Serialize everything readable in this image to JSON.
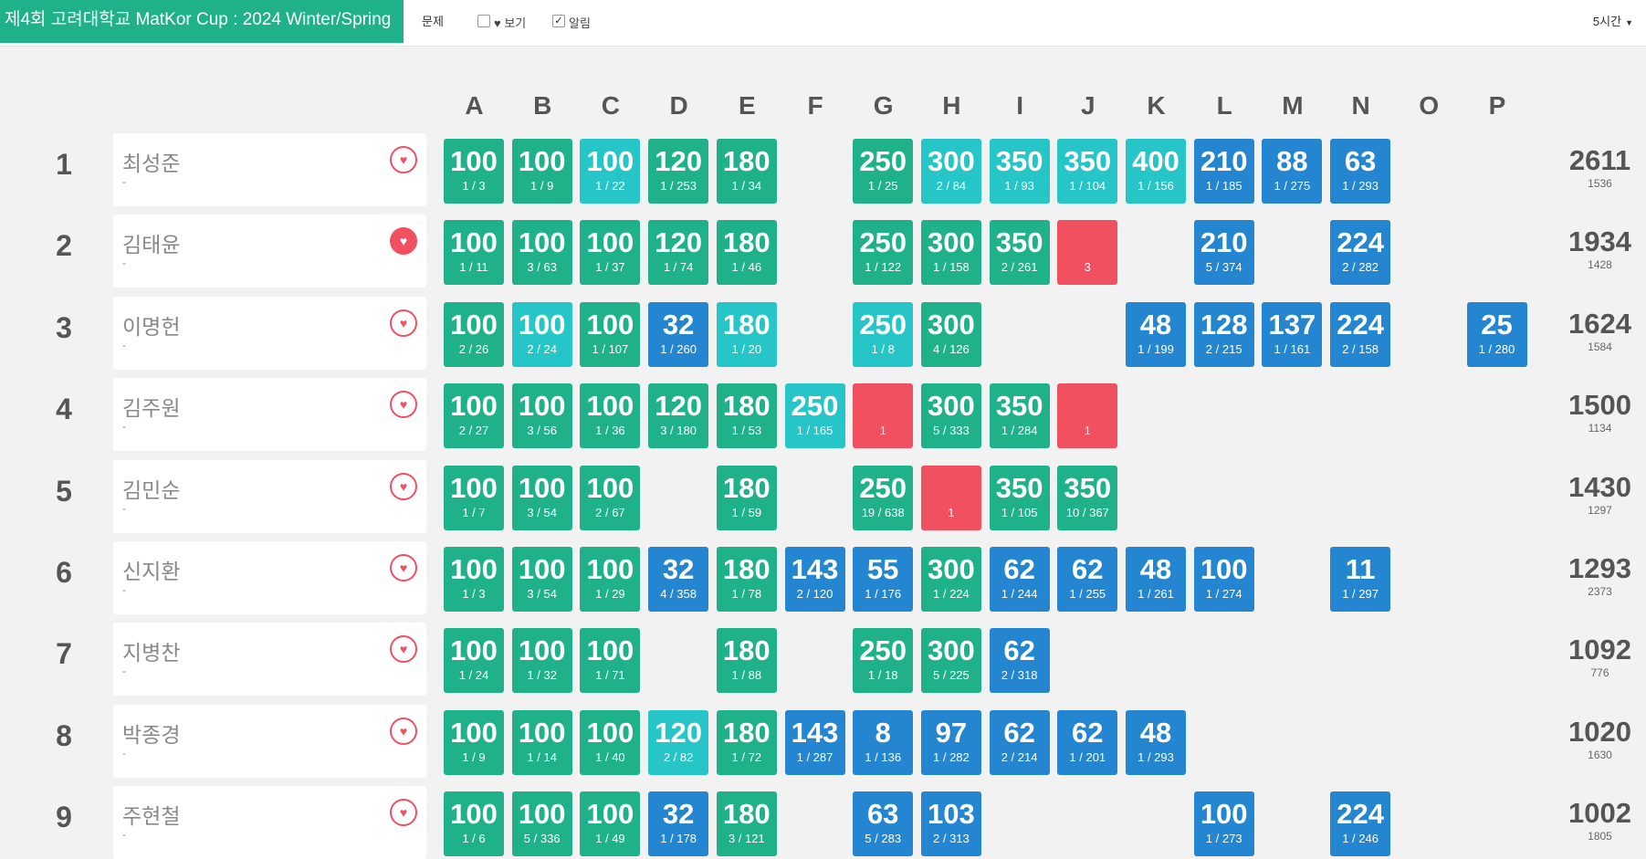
{
  "header": {
    "contest_title": "제4회 고려대학교 MatKor Cup : 2024 Winter/Spring",
    "menu_problem": "문제",
    "view_label": "보기",
    "view_checked": false,
    "alert_label": "알림",
    "alert_checked": true,
    "duration": "5시간"
  },
  "columns": [
    "A",
    "B",
    "C",
    "D",
    "E",
    "F",
    "G",
    "H",
    "I",
    "J",
    "K",
    "L",
    "M",
    "N",
    "O",
    "P"
  ],
  "rows": [
    {
      "rank": "1",
      "name": "최성준",
      "org": "-",
      "fav": false,
      "total": "2611",
      "penalty": "1536",
      "cells": [
        [
          "s",
          "100",
          "1 / 3"
        ],
        [
          "s",
          "100",
          "1 / 9"
        ],
        [
          "f",
          "100",
          "1 / 22"
        ],
        [
          "s",
          "120",
          "1 / 253"
        ],
        [
          "s",
          "180",
          "1 / 34"
        ],
        null,
        [
          "s",
          "250",
          "1 / 25"
        ],
        [
          "f",
          "300",
          "2 / 84"
        ],
        [
          "f",
          "350",
          "1 / 93"
        ],
        [
          "f",
          "350",
          "1 / 104"
        ],
        [
          "f",
          "400",
          "1 / 156"
        ],
        [
          "p",
          "210",
          "1 / 185"
        ],
        [
          "p",
          "88",
          "1 / 275"
        ],
        [
          "p",
          "63",
          "1 / 293"
        ],
        null,
        null
      ]
    },
    {
      "rank": "2",
      "name": "김태윤",
      "org": "-",
      "fav": true,
      "total": "1934",
      "penalty": "1428",
      "cells": [
        [
          "s",
          "100",
          "1 / 11"
        ],
        [
          "s",
          "100",
          "3 / 63"
        ],
        [
          "s",
          "100",
          "1 / 37"
        ],
        [
          "s",
          "120",
          "1 / 74"
        ],
        [
          "s",
          "180",
          "1 / 46"
        ],
        null,
        [
          "s",
          "250",
          "1 / 122"
        ],
        [
          "s",
          "300",
          "1 / 158"
        ],
        [
          "s",
          "350",
          "2 / 261"
        ],
        [
          "x",
          "",
          "3"
        ],
        null,
        [
          "p",
          "210",
          "5 / 374"
        ],
        null,
        [
          "p",
          "224",
          "2 / 282"
        ],
        null,
        null
      ]
    },
    {
      "rank": "3",
      "name": "이명헌",
      "org": "-",
      "fav": false,
      "total": "1624",
      "penalty": "1584",
      "cells": [
        [
          "s",
          "100",
          "2 / 26"
        ],
        [
          "f",
          "100",
          "2 / 24"
        ],
        [
          "s",
          "100",
          "1 / 107"
        ],
        [
          "p",
          "32",
          "1 / 260"
        ],
        [
          "f",
          "180",
          "1 / 20"
        ],
        null,
        [
          "f",
          "250",
          "1 / 8"
        ],
        [
          "s",
          "300",
          "4 / 126"
        ],
        null,
        null,
        [
          "p",
          "48",
          "1 / 199"
        ],
        [
          "p",
          "128",
          "2 / 215"
        ],
        [
          "p",
          "137",
          "1 / 161"
        ],
        [
          "p",
          "224",
          "2 / 158"
        ],
        null,
        [
          "p",
          "25",
          "1 / 280"
        ]
      ]
    },
    {
      "rank": "4",
      "name": "김주원",
      "org": "-",
      "fav": false,
      "total": "1500",
      "penalty": "1134",
      "cells": [
        [
          "s",
          "100",
          "2 / 27"
        ],
        [
          "s",
          "100",
          "3 / 56"
        ],
        [
          "s",
          "100",
          "1 / 36"
        ],
        [
          "s",
          "120",
          "3 / 180"
        ],
        [
          "s",
          "180",
          "1 / 53"
        ],
        [
          "f",
          "250",
          "1 / 165"
        ],
        [
          "x",
          "",
          "1"
        ],
        [
          "s",
          "300",
          "5 / 333"
        ],
        [
          "s",
          "350",
          "1 / 284"
        ],
        [
          "x",
          "",
          "1"
        ],
        null,
        null,
        null,
        null,
        null,
        null
      ]
    },
    {
      "rank": "5",
      "name": "김민순",
      "org": "-",
      "fav": false,
      "total": "1430",
      "penalty": "1297",
      "cells": [
        [
          "s",
          "100",
          "1 / 7"
        ],
        [
          "s",
          "100",
          "3 / 54"
        ],
        [
          "s",
          "100",
          "2 / 67"
        ],
        null,
        [
          "s",
          "180",
          "1 / 59"
        ],
        null,
        [
          "s",
          "250",
          "19 / 638"
        ],
        [
          "x",
          "",
          "1"
        ],
        [
          "s",
          "350",
          "1 / 105"
        ],
        [
          "s",
          "350",
          "10 / 367"
        ],
        null,
        null,
        null,
        null,
        null,
        null
      ]
    },
    {
      "rank": "6",
      "name": "신지환",
      "org": "-",
      "fav": false,
      "total": "1293",
      "penalty": "2373",
      "cells": [
        [
          "s",
          "100",
          "1 / 3"
        ],
        [
          "s",
          "100",
          "3 / 54"
        ],
        [
          "s",
          "100",
          "1 / 29"
        ],
        [
          "p",
          "32",
          "4 / 358"
        ],
        [
          "s",
          "180",
          "1 / 78"
        ],
        [
          "p",
          "143",
          "2 / 120"
        ],
        [
          "p",
          "55",
          "1 / 176"
        ],
        [
          "s",
          "300",
          "1 / 224"
        ],
        [
          "p",
          "62",
          "1 / 244"
        ],
        [
          "p",
          "62",
          "1 / 255"
        ],
        [
          "p",
          "48",
          "1 / 261"
        ],
        [
          "p",
          "100",
          "1 / 274"
        ],
        null,
        [
          "p",
          "11",
          "1 / 297"
        ],
        null,
        null
      ]
    },
    {
      "rank": "7",
      "name": "지병찬",
      "org": "-",
      "fav": false,
      "total": "1092",
      "penalty": "776",
      "cells": [
        [
          "s",
          "100",
          "1 / 24"
        ],
        [
          "s",
          "100",
          "1 / 32"
        ],
        [
          "s",
          "100",
          "1 / 71"
        ],
        null,
        [
          "s",
          "180",
          "1 / 88"
        ],
        null,
        [
          "s",
          "250",
          "1 / 18"
        ],
        [
          "s",
          "300",
          "5 / 225"
        ],
        [
          "p",
          "62",
          "2 / 318"
        ],
        null,
        null,
        null,
        null,
        null,
        null,
        null
      ]
    },
    {
      "rank": "8",
      "name": "박종경",
      "org": "-",
      "fav": false,
      "total": "1020",
      "penalty": "1630",
      "cells": [
        [
          "s",
          "100",
          "1 / 9"
        ],
        [
          "s",
          "100",
          "1 / 14"
        ],
        [
          "s",
          "100",
          "1 / 40"
        ],
        [
          "f",
          "120",
          "2 / 82"
        ],
        [
          "s",
          "180",
          "1 / 72"
        ],
        [
          "p",
          "143",
          "1 / 287"
        ],
        [
          "p",
          "8",
          "1 / 136"
        ],
        [
          "p",
          "97",
          "1 / 282"
        ],
        [
          "p",
          "62",
          "2 / 214"
        ],
        [
          "p",
          "62",
          "1 / 201"
        ],
        [
          "p",
          "48",
          "1 / 293"
        ],
        null,
        null,
        null,
        null,
        null
      ]
    },
    {
      "rank": "9",
      "name": "주현철",
      "org": "-",
      "fav": false,
      "total": "1002",
      "penalty": "1805",
      "cells": [
        [
          "s",
          "100",
          "1 / 6"
        ],
        [
          "s",
          "100",
          "5 / 336"
        ],
        [
          "s",
          "100",
          "1 / 49"
        ],
        [
          "p",
          "32",
          "1 / 178"
        ],
        [
          "s",
          "180",
          "3 / 121"
        ],
        null,
        [
          "p",
          "63",
          "5 / 283"
        ],
        [
          "p",
          "103",
          "2 / 313"
        ],
        null,
        null,
        null,
        [
          "p",
          "100",
          "1 / 273"
        ],
        null,
        [
          "p",
          "224",
          "1 / 246"
        ],
        null,
        null
      ]
    }
  ]
}
